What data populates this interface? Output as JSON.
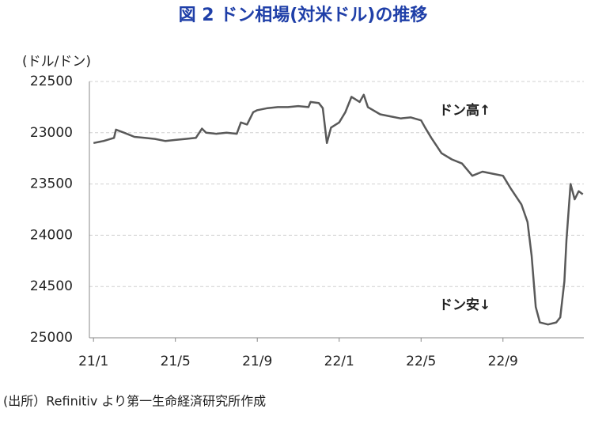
{
  "chart_data": {
    "type": "line",
    "title": "図 2 ドン相場(対米ドル)の推移",
    "y_axis_label": "(ドル/ドン)",
    "source": "(出所）Refinitiv より第一生命経済研究所作成",
    "annotations": [
      "ドン高↑",
      "ドン安↓"
    ],
    "y_inverted": true,
    "grid": true,
    "xlim": [
      -0.2,
      23.95
    ],
    "xticks": [
      {
        "value": 0,
        "label": "21/1"
      },
      {
        "value": 4,
        "label": "21/5"
      },
      {
        "value": 8,
        "label": "21/9"
      },
      {
        "value": 12,
        "label": "22/1"
      },
      {
        "value": 16,
        "label": "22/5"
      },
      {
        "value": 20,
        "label": "22/9"
      }
    ],
    "ylim": [
      22500,
      25000
    ],
    "yticks": [
      22500,
      23000,
      23500,
      24000,
      24500,
      25000
    ],
    "series": [
      {
        "color": "#595959",
        "x": [
          0,
          0.5,
          1,
          1.1,
          1.5,
          2,
          2.5,
          3,
          3.5,
          4,
          4.5,
          5,
          5.3,
          5.5,
          6,
          6.5,
          7,
          7.2,
          7.5,
          7.8,
          8,
          8.5,
          9,
          9.5,
          10,
          10.5,
          10.6,
          11,
          11.2,
          11.4,
          11.6,
          12,
          12.3,
          12.6,
          13,
          13.2,
          13.4,
          14,
          14.5,
          15,
          15.5,
          16,
          16.2,
          16.5,
          17,
          17.5,
          18,
          18.5,
          19,
          19.5,
          20,
          20.4,
          20.9,
          21.2,
          21.4,
          21.6,
          21.8,
          22.2,
          22.6,
          22.8,
          23.0,
          23.1,
          23.3,
          23.5,
          23.7,
          23.9
        ],
        "values": [
          23100,
          23080,
          23050,
          22970,
          23000,
          23040,
          23050,
          23060,
          23080,
          23070,
          23060,
          23050,
          22960,
          23000,
          23010,
          23000,
          23010,
          22900,
          22920,
          22800,
          22780,
          22760,
          22750,
          22750,
          22740,
          22750,
          22700,
          22710,
          22760,
          23100,
          22950,
          22900,
          22800,
          22650,
          22700,
          22630,
          22750,
          22820,
          22840,
          22860,
          22850,
          22880,
          22950,
          23050,
          23200,
          23260,
          23300,
          23420,
          23380,
          23400,
          23420,
          23550,
          23700,
          23870,
          24200,
          24700,
          24850,
          24870,
          24850,
          24800,
          24450,
          24050,
          23500,
          23650,
          23570,
          23600
        ]
      }
    ]
  }
}
